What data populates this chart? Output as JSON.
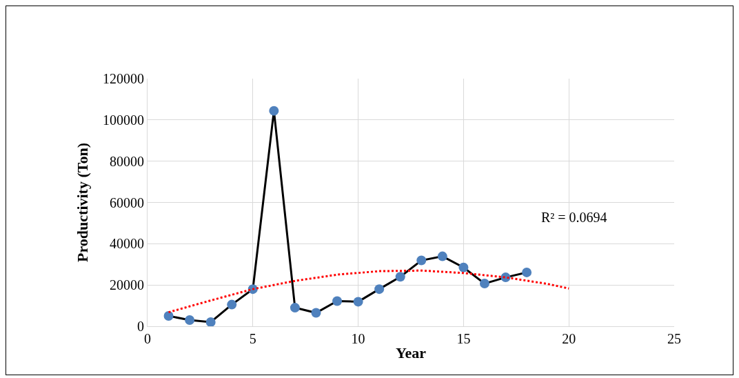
{
  "chart_data": {
    "type": "line",
    "xlabel": "Year",
    "ylabel": "Productivity (Ton)",
    "x": [
      1,
      2,
      3,
      4,
      5,
      6,
      7,
      8,
      9,
      10,
      11,
      12,
      13,
      14,
      15,
      16,
      17,
      18
    ],
    "series": [
      {
        "color": "#4f81bd",
        "marker": "circle",
        "line_style": "solid",
        "values": [
          5000,
          3000,
          2000,
          10500,
          18000,
          104400,
          9000,
          6500,
          12200,
          11900,
          18000,
          24000,
          31900,
          33900,
          28500,
          20700,
          23700,
          26100
        ]
      },
      {
        "color": "#ff0000",
        "marker": "none",
        "line_style": "dotted",
        "x": [
          1,
          3,
          5,
          7,
          9,
          11,
          13,
          15,
          17,
          19,
          20
        ],
        "values": [
          6800,
          12500,
          18000,
          22000,
          25000,
          26700,
          27000,
          25800,
          23700,
          20500,
          18300
        ]
      }
    ],
    "annotations": [
      "R² = 0.0694"
    ],
    "xlim": [
      0,
      25
    ],
    "xticks": [
      0,
      5,
      10,
      15,
      20,
      25
    ],
    "ylim": [
      0,
      120000
    ],
    "yticks": [
      0,
      20000,
      40000,
      60000,
      80000,
      100000,
      120000
    ],
    "grid": true
  }
}
